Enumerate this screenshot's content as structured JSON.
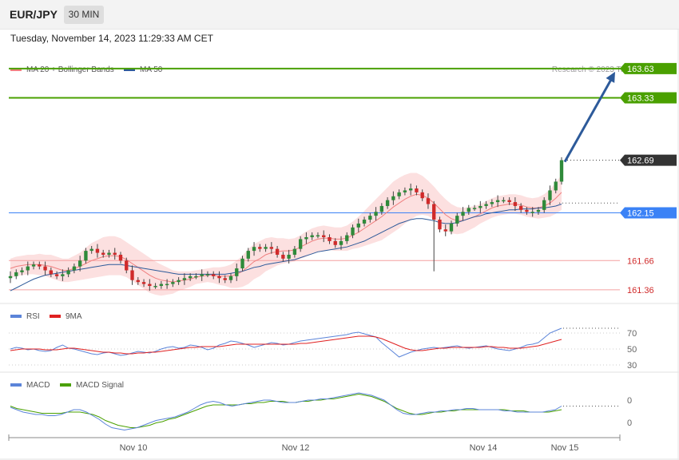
{
  "header": {
    "symbol": "EUR/JPY",
    "timeframe": "30 MIN",
    "timestamp": "Tuesday, November 14, 2023 11:29:33 AM CET"
  },
  "colors": {
    "candle_up": "#2f8a3a",
    "candle_down": "#d02a2a",
    "bollinger_fill": "#fbd6d6",
    "ma20": "#f08080",
    "ma50": "#2d5a9a",
    "target": "#4aa000",
    "support_blue": "#3b82f6",
    "resistance_red": "#f4a0a0",
    "current_price_bg": "#333333",
    "arrow": "#2d5a9a",
    "rsi": "#5b84d9",
    "rsi_ma": "#e02020",
    "macd": "#5b84d9",
    "macd_signal": "#4aa000"
  },
  "main_legend": {
    "ma20_label": "MA 20 + Bollinger Bands",
    "ma50_label": "MA 50",
    "credit": "Research © 2023 Trading Central"
  },
  "rsi_legend": {
    "rsi_label": "RSI",
    "ma_label": "9MA"
  },
  "macd_legend": {
    "macd_label": "MACD",
    "signal_label": "MACD Signal"
  },
  "chart_data": [
    {
      "type": "candlestick",
      "title": "EUR/JPY 30 MIN",
      "ylim": [
        161.22,
        163.76
      ],
      "x_labels": [
        "Nov 10",
        "Nov 12",
        "Nov 14",
        "Nov 15"
      ],
      "levels": [
        {
          "value": 163.63,
          "label": "163.63",
          "kind": "target"
        },
        {
          "value": 163.33,
          "label": "163.33",
          "kind": "target"
        },
        {
          "value": 162.69,
          "label": "162.69",
          "kind": "current"
        },
        {
          "value": 162.15,
          "label": "162.15",
          "kind": "pivot"
        },
        {
          "value": 161.66,
          "label": "161.66",
          "kind": "support"
        },
        {
          "value": 161.36,
          "label": "161.36",
          "kind": "support"
        }
      ],
      "close_series": [
        161.5,
        161.54,
        161.56,
        161.6,
        161.62,
        161.6,
        161.56,
        161.52,
        161.5,
        161.52,
        161.56,
        161.6,
        161.66,
        161.76,
        161.78,
        161.74,
        161.72,
        161.74,
        161.72,
        161.66,
        161.56,
        161.46,
        161.44,
        161.42,
        161.4,
        161.4,
        161.42,
        161.42,
        161.44,
        161.46,
        161.48,
        161.5,
        161.5,
        161.52,
        161.52,
        161.5,
        161.48,
        161.46,
        161.5,
        161.58,
        161.68,
        161.76,
        161.8,
        161.78,
        161.8,
        161.78,
        161.72,
        161.68,
        161.72,
        161.78,
        161.88,
        161.9,
        161.92,
        161.92,
        161.9,
        161.86,
        161.82,
        161.86,
        161.92,
        162.0,
        162.04,
        162.08,
        162.12,
        162.16,
        162.22,
        162.28,
        162.32,
        162.36,
        162.38,
        162.4,
        162.36,
        162.3,
        162.24,
        162.08,
        161.98,
        161.96,
        162.04,
        162.12,
        162.16,
        162.2,
        162.2,
        162.22,
        162.24,
        162.26,
        162.28,
        162.28,
        162.26,
        162.22,
        162.18,
        162.16,
        162.16,
        162.18,
        162.28,
        162.38,
        162.47,
        162.69
      ],
      "ma20_series": [
        161.58,
        161.6,
        161.61,
        161.62,
        161.62,
        161.62,
        161.61,
        161.6,
        161.58,
        161.56,
        161.56,
        161.58,
        161.6,
        161.63,
        161.66,
        161.68,
        161.7,
        161.71,
        161.71,
        161.7,
        161.67,
        161.63,
        161.59,
        161.55,
        161.51,
        161.48,
        161.46,
        161.45,
        161.44,
        161.45,
        161.46,
        161.47,
        161.49,
        161.5,
        161.51,
        161.51,
        161.5,
        161.5,
        161.5,
        161.52,
        161.55,
        161.6,
        161.65,
        161.68,
        161.72,
        161.74,
        161.75,
        161.76,
        161.76,
        161.77,
        161.8,
        161.83,
        161.86,
        161.88,
        161.89,
        161.89,
        161.88,
        161.88,
        161.89,
        161.92,
        161.95,
        161.99,
        162.03,
        162.07,
        162.11,
        162.16,
        162.21,
        162.25,
        162.29,
        162.32,
        162.34,
        162.33,
        162.3,
        162.25,
        162.19,
        162.13,
        162.09,
        162.07,
        162.07,
        162.09,
        162.11,
        162.14,
        162.17,
        162.2,
        162.22,
        162.23,
        162.24,
        162.24,
        162.23,
        162.21,
        162.2,
        162.2,
        162.22,
        162.25,
        162.3,
        162.36
      ],
      "ma50_series": [
        161.35,
        161.38,
        161.41,
        161.44,
        161.47,
        161.49,
        161.51,
        161.52,
        161.53,
        161.54,
        161.55,
        161.56,
        161.57,
        161.58,
        161.59,
        161.6,
        161.61,
        161.62,
        161.62,
        161.62,
        161.61,
        161.6,
        161.59,
        161.58,
        161.57,
        161.56,
        161.55,
        161.54,
        161.53,
        161.52,
        161.52,
        161.52,
        161.52,
        161.52,
        161.52,
        161.52,
        161.52,
        161.52,
        161.53,
        161.54,
        161.55,
        161.57,
        161.59,
        161.6,
        161.62,
        161.63,
        161.64,
        161.65,
        161.66,
        161.67,
        161.69,
        161.71,
        161.73,
        161.75,
        161.76,
        161.77,
        161.78,
        161.79,
        161.8,
        161.82,
        161.84,
        161.86,
        161.89,
        161.92,
        161.95,
        161.98,
        162.01,
        162.04,
        162.06,
        162.08,
        162.09,
        162.09,
        162.08,
        162.07,
        162.05,
        162.04,
        162.04,
        162.05,
        162.07,
        162.09,
        162.11,
        162.12,
        162.14,
        162.15,
        162.16,
        162.17,
        162.18,
        162.18,
        162.19,
        162.19,
        162.19,
        162.2,
        162.2,
        162.21,
        162.22,
        162.24
      ],
      "bb_width_series": [
        0.1,
        0.1,
        0.1,
        0.1,
        0.1,
        0.11,
        0.11,
        0.12,
        0.12,
        0.12,
        0.12,
        0.13,
        0.14,
        0.16,
        0.18,
        0.19,
        0.2,
        0.2,
        0.2,
        0.19,
        0.18,
        0.18,
        0.18,
        0.18,
        0.18,
        0.17,
        0.16,
        0.14,
        0.12,
        0.1,
        0.09,
        0.08,
        0.07,
        0.07,
        0.07,
        0.08,
        0.09,
        0.1,
        0.12,
        0.14,
        0.16,
        0.18,
        0.18,
        0.18,
        0.17,
        0.16,
        0.14,
        0.13,
        0.12,
        0.12,
        0.12,
        0.13,
        0.13,
        0.13,
        0.13,
        0.12,
        0.12,
        0.12,
        0.13,
        0.14,
        0.16,
        0.18,
        0.2,
        0.22,
        0.24,
        0.25,
        0.26,
        0.26,
        0.25,
        0.24,
        0.22,
        0.2,
        0.18,
        0.17,
        0.16,
        0.16,
        0.15,
        0.14,
        0.13,
        0.12,
        0.11,
        0.1,
        0.1,
        0.1,
        0.1,
        0.1,
        0.1,
        0.1,
        0.1,
        0.1,
        0.1,
        0.11,
        0.12,
        0.14,
        0.16,
        0.18
      ]
    },
    {
      "type": "line",
      "title": "RSI",
      "ylim": [
        25,
        82
      ],
      "y_ticks": [
        70,
        50,
        30
      ],
      "series": [
        {
          "name": "RSI",
          "values": [
            50,
            52,
            51,
            49,
            50,
            48,
            47,
            48,
            52,
            55,
            51,
            50,
            48,
            46,
            44,
            43,
            45,
            46,
            44,
            42,
            43,
            45,
            47,
            46,
            45,
            47,
            50,
            52,
            53,
            51,
            52,
            55,
            54,
            52,
            49,
            51,
            55,
            57,
            60,
            59,
            57,
            55,
            52,
            54,
            56,
            58,
            57,
            55,
            56,
            58,
            60,
            61,
            62,
            63,
            64,
            65,
            66,
            67,
            68,
            70,
            71,
            69,
            67,
            65,
            58,
            52,
            46,
            40,
            43,
            46,
            48,
            50,
            51,
            52,
            51,
            52,
            53,
            54,
            52,
            51,
            52,
            53,
            54,
            52,
            50,
            49,
            48,
            50,
            52,
            55,
            56,
            58,
            64,
            70,
            73,
            76
          ]
        },
        {
          "name": "9MA",
          "values": [
            48,
            49,
            50,
            50,
            50,
            50,
            49,
            49,
            49,
            50,
            51,
            51,
            50,
            49,
            48,
            47,
            46,
            46,
            45,
            45,
            44,
            44,
            45,
            45,
            46,
            46,
            47,
            48,
            49,
            50,
            51,
            52,
            52,
            53,
            53,
            53,
            53,
            54,
            55,
            56,
            56,
            56,
            56,
            56,
            56,
            56,
            56,
            56,
            56,
            56,
            57,
            57,
            58,
            59,
            60,
            61,
            62,
            63,
            64,
            65,
            66,
            66,
            66,
            65,
            63,
            60,
            57,
            54,
            51,
            49,
            48,
            48,
            49,
            50,
            51,
            51,
            52,
            52,
            52,
            52,
            52,
            52,
            53,
            53,
            52,
            52,
            51,
            51,
            51,
            52,
            53,
            54,
            56,
            58,
            60,
            62
          ]
        }
      ]
    },
    {
      "type": "line",
      "title": "MACD",
      "ylim": [
        -0.24,
        0.12
      ],
      "y_ticks": [
        "0",
        "0"
      ],
      "series": [
        {
          "name": "MACD",
          "values": [
            0.0,
            -0.02,
            -0.04,
            -0.05,
            -0.06,
            -0.06,
            -0.07,
            -0.07,
            -0.06,
            -0.04,
            -0.02,
            -0.02,
            -0.04,
            -0.07,
            -0.1,
            -0.14,
            -0.17,
            -0.18,
            -0.19,
            -0.18,
            -0.17,
            -0.15,
            -0.13,
            -0.11,
            -0.1,
            -0.09,
            -0.08,
            -0.06,
            -0.04,
            -0.01,
            0.02,
            0.04,
            0.05,
            0.04,
            0.02,
            0.01,
            0.02,
            0.03,
            0.04,
            0.05,
            0.06,
            0.06,
            0.05,
            0.04,
            0.04,
            0.04,
            0.05,
            0.06,
            0.06,
            0.07,
            0.07,
            0.08,
            0.09,
            0.1,
            0.11,
            0.12,
            0.11,
            0.1,
            0.08,
            0.06,
            0.02,
            -0.02,
            -0.05,
            -0.06,
            -0.06,
            -0.05,
            -0.04,
            -0.04,
            -0.03,
            -0.03,
            -0.02,
            -0.02,
            -0.01,
            -0.01,
            -0.02,
            -0.02,
            -0.02,
            -0.02,
            -0.03,
            -0.03,
            -0.04,
            -0.04,
            -0.04,
            -0.04,
            -0.04,
            -0.03,
            -0.02,
            0.01
          ]
        },
        {
          "name": "MACD Signal",
          "values": [
            0.01,
            -0.01,
            -0.02,
            -0.03,
            -0.04,
            -0.05,
            -0.05,
            -0.05,
            -0.05,
            -0.04,
            -0.04,
            -0.04,
            -0.05,
            -0.06,
            -0.08,
            -0.11,
            -0.13,
            -0.15,
            -0.16,
            -0.17,
            -0.17,
            -0.16,
            -0.15,
            -0.13,
            -0.12,
            -0.1,
            -0.09,
            -0.07,
            -0.05,
            -0.03,
            -0.01,
            0.01,
            0.02,
            0.02,
            0.02,
            0.02,
            0.02,
            0.03,
            0.03,
            0.04,
            0.04,
            0.05,
            0.05,
            0.05,
            0.04,
            0.04,
            0.05,
            0.05,
            0.06,
            0.06,
            0.07,
            0.07,
            0.08,
            0.09,
            0.1,
            0.11,
            0.1,
            0.09,
            0.07,
            0.05,
            0.02,
            -0.01,
            -0.03,
            -0.05,
            -0.06,
            -0.06,
            -0.05,
            -0.04,
            -0.04,
            -0.03,
            -0.03,
            -0.02,
            -0.02,
            -0.02,
            -0.02,
            -0.02,
            -0.02,
            -0.02,
            -0.02,
            -0.03,
            -0.03,
            -0.03,
            -0.04,
            -0.04,
            -0.04,
            -0.04,
            -0.03,
            -0.02
          ]
        }
      ]
    }
  ]
}
